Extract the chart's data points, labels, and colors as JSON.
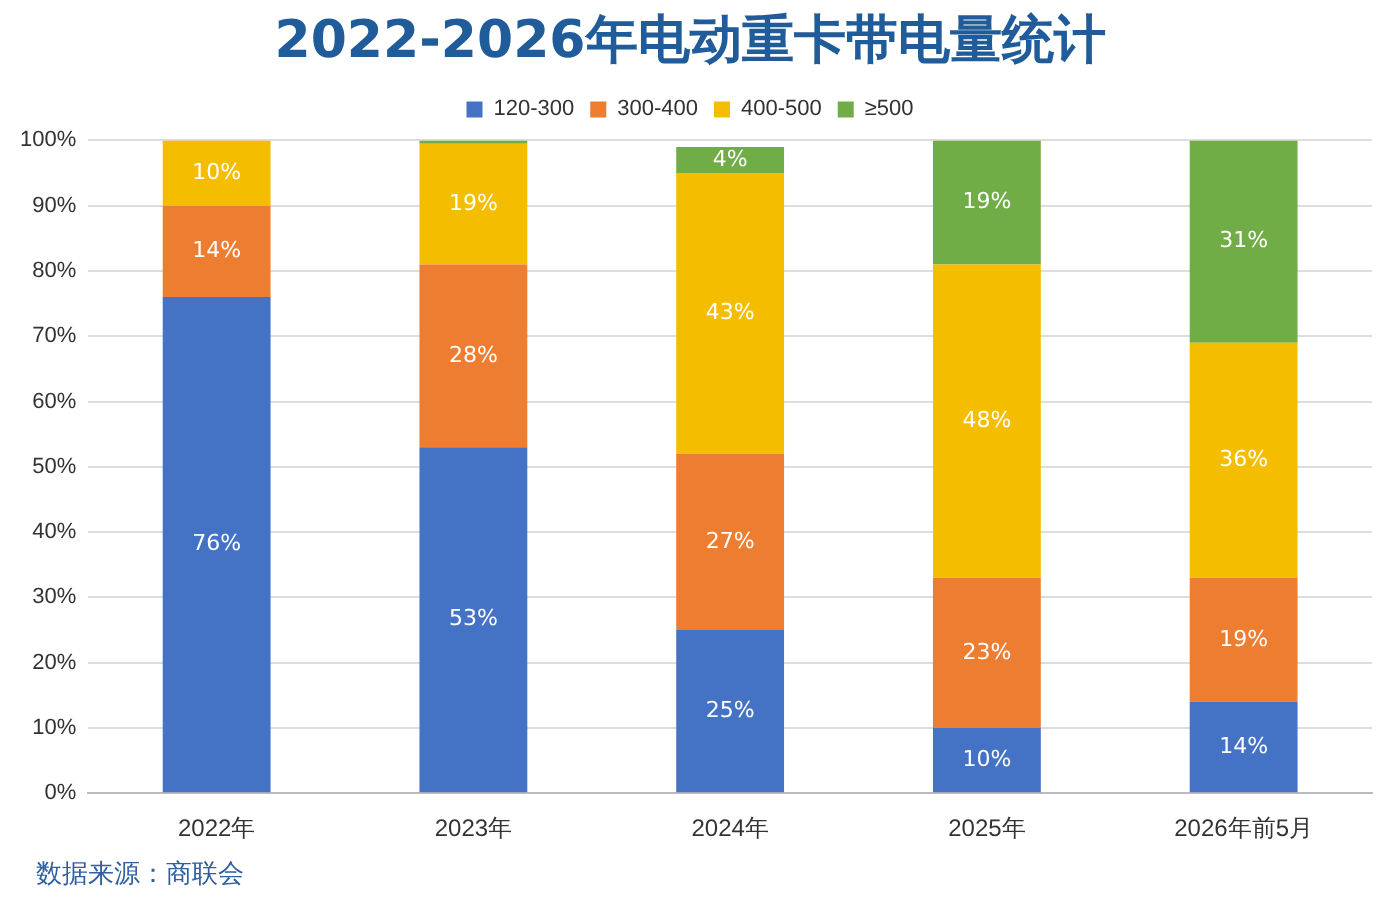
{
  "chart_data": {
    "type": "bar",
    "title": "2022-2026年电动重卡带电量统计",
    "categories": [
      "2022年",
      "2023年",
      "2024年",
      "2025年",
      "2026年前5月"
    ],
    "stacked": true,
    "ylim": [
      0,
      100
    ],
    "yticks": [
      {
        "value": 0,
        "label": "0%"
      },
      {
        "value": 10,
        "label": "10%"
      },
      {
        "value": 20,
        "label": "20%"
      },
      {
        "value": 30,
        "label": "30%"
      },
      {
        "value": 40,
        "label": "40%"
      },
      {
        "value": 50,
        "label": "50%"
      },
      {
        "value": 60,
        "label": "60%"
      },
      {
        "value": 70,
        "label": "70%"
      },
      {
        "value": 80,
        "label": "80%"
      },
      {
        "value": 90,
        "label": "90%"
      },
      {
        "value": 100,
        "label": "100%"
      }
    ],
    "grid": "y",
    "legend": "top",
    "series": [
      {
        "name": "120-300",
        "color": "#4472c4",
        "values": [
          76,
          53,
          25,
          10,
          14
        ],
        "value_labels": [
          "76%",
          "53%",
          "25%",
          "10%",
          "14%"
        ]
      },
      {
        "name": "300-400",
        "color": "#ed7d31",
        "values": [
          14,
          28,
          27,
          23,
          19
        ],
        "value_labels": [
          "14%",
          "28%",
          "27%",
          "23%",
          "19%"
        ]
      },
      {
        "name": "400-500",
        "color": "#f5bd00",
        "values": [
          10,
          18.5,
          43,
          48,
          36
        ],
        "value_labels": [
          "10%",
          "19%",
          "43%",
          "48%",
          "36%"
        ]
      },
      {
        "name": "≥500",
        "color": "#70ad47",
        "values": [
          0,
          0.5,
          4,
          19,
          31
        ],
        "value_labels": [
          null,
          null,
          "4%",
          "19%",
          "31%"
        ]
      }
    ],
    "annotations": [
      "数据来源：商联会"
    ]
  }
}
